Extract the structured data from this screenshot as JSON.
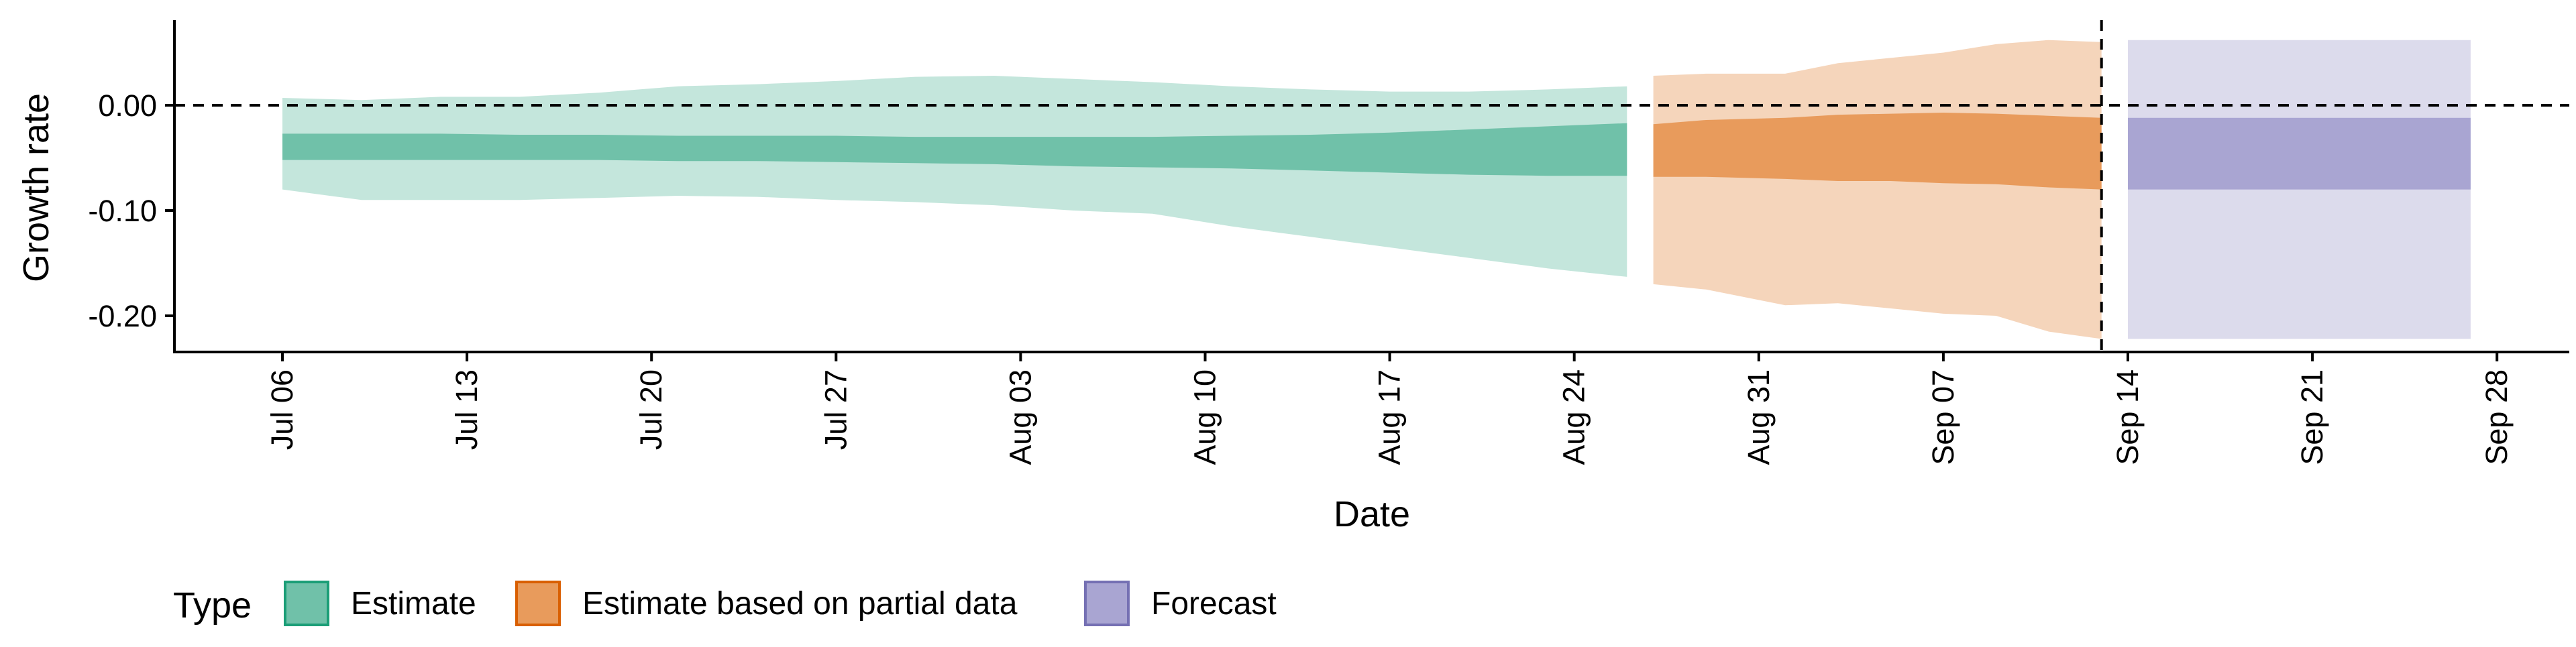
{
  "chart_data": {
    "type": "area",
    "title": "",
    "xlabel": "Date",
    "ylabel": "Growth rate",
    "x_range": [
      "2020-07-01",
      "2020-10-01"
    ],
    "ylim": [
      -0.236,
      0.08
    ],
    "y_ticks": [
      {
        "value": 0.0,
        "label": "0.00"
      },
      {
        "value": -0.1,
        "label": "-0.10"
      },
      {
        "value": -0.2,
        "label": "-0.20"
      }
    ],
    "x_ticks": [
      {
        "date": "2020-07-06",
        "label": "Jul 06"
      },
      {
        "date": "2020-07-13",
        "label": "Jul 13"
      },
      {
        "date": "2020-07-20",
        "label": "Jul 20"
      },
      {
        "date": "2020-07-27",
        "label": "Jul 27"
      },
      {
        "date": "2020-08-03",
        "label": "Aug 03"
      },
      {
        "date": "2020-08-10",
        "label": "Aug 10"
      },
      {
        "date": "2020-08-17",
        "label": "Aug 17"
      },
      {
        "date": "2020-08-24",
        "label": "Aug 24"
      },
      {
        "date": "2020-08-31",
        "label": "Aug 31"
      },
      {
        "date": "2020-09-07",
        "label": "Sep 07"
      },
      {
        "date": "2020-09-14",
        "label": "Sep 14"
      },
      {
        "date": "2020-09-21",
        "label": "Sep 21"
      },
      {
        "date": "2020-09-28",
        "label": "Sep 28"
      }
    ],
    "reference_lines": [
      {
        "orientation": "horizontal",
        "y": 0.0,
        "style": "dashed"
      },
      {
        "orientation": "vertical",
        "date": "2020-09-13",
        "style": "dashed"
      }
    ],
    "grid": false,
    "legend": {
      "title": "Type",
      "position": "bottom",
      "entries": [
        {
          "label": "Estimate",
          "color": "#1b9e77"
        },
        {
          "label": "Estimate based on partial data",
          "color": "#d95f02"
        },
        {
          "label": "Forecast",
          "color": "#7570b3"
        }
      ]
    },
    "series": [
      {
        "name": "Estimate",
        "color": "#1b9e77",
        "inner_fill": "#70c1a9",
        "outer_fill": "#c4e6dc",
        "points": [
          {
            "date": "2020-07-06",
            "lower_90": -0.08,
            "lower_50": -0.052,
            "upper_50": -0.027,
            "upper_90": 0.007
          },
          {
            "date": "2020-07-09",
            "lower_90": -0.09,
            "lower_50": -0.052,
            "upper_50": -0.027,
            "upper_90": 0.005
          },
          {
            "date": "2020-07-12",
            "lower_90": -0.09,
            "lower_50": -0.052,
            "upper_50": -0.027,
            "upper_90": 0.008
          },
          {
            "date": "2020-07-15",
            "lower_90": -0.09,
            "lower_50": -0.052,
            "upper_50": -0.028,
            "upper_90": 0.008
          },
          {
            "date": "2020-07-18",
            "lower_90": -0.088,
            "lower_50": -0.052,
            "upper_50": -0.028,
            "upper_90": 0.012
          },
          {
            "date": "2020-07-21",
            "lower_90": -0.086,
            "lower_50": -0.053,
            "upper_50": -0.029,
            "upper_90": 0.018
          },
          {
            "date": "2020-07-24",
            "lower_90": -0.087,
            "lower_50": -0.053,
            "upper_50": -0.029,
            "upper_90": 0.02
          },
          {
            "date": "2020-07-27",
            "lower_90": -0.09,
            "lower_50": -0.054,
            "upper_50": -0.029,
            "upper_90": 0.023
          },
          {
            "date": "2020-07-30",
            "lower_90": -0.092,
            "lower_50": -0.055,
            "upper_50": -0.03,
            "upper_90": 0.027
          },
          {
            "date": "2020-08-02",
            "lower_90": -0.095,
            "lower_50": -0.056,
            "upper_50": -0.03,
            "upper_90": 0.028
          },
          {
            "date": "2020-08-05",
            "lower_90": -0.1,
            "lower_50": -0.058,
            "upper_50": -0.03,
            "upper_90": 0.025
          },
          {
            "date": "2020-08-08",
            "lower_90": -0.103,
            "lower_50": -0.059,
            "upper_50": -0.03,
            "upper_90": 0.022
          },
          {
            "date": "2020-08-11",
            "lower_90": -0.115,
            "lower_50": -0.06,
            "upper_50": -0.029,
            "upper_90": 0.018
          },
          {
            "date": "2020-08-14",
            "lower_90": -0.125,
            "lower_50": -0.062,
            "upper_50": -0.028,
            "upper_90": 0.015
          },
          {
            "date": "2020-08-17",
            "lower_90": -0.135,
            "lower_50": -0.064,
            "upper_50": -0.026,
            "upper_90": 0.013
          },
          {
            "date": "2020-08-20",
            "lower_90": -0.145,
            "lower_50": -0.066,
            "upper_50": -0.023,
            "upper_90": 0.013
          },
          {
            "date": "2020-08-23",
            "lower_90": -0.155,
            "lower_50": -0.067,
            "upper_50": -0.02,
            "upper_90": 0.015
          },
          {
            "date": "2020-08-26",
            "lower_90": -0.163,
            "lower_50": -0.067,
            "upper_50": -0.017,
            "upper_90": 0.018
          }
        ]
      },
      {
        "name": "Estimate based on partial data",
        "color": "#d95f02",
        "inner_fill": "#e89b5c",
        "outer_fill": "#f5d5bb",
        "points": [
          {
            "date": "2020-08-27",
            "lower_90": -0.17,
            "lower_50": -0.068,
            "upper_50": -0.018,
            "upper_90": 0.028
          },
          {
            "date": "2020-08-29",
            "lower_90": -0.175,
            "lower_50": -0.068,
            "upper_50": -0.014,
            "upper_90": 0.03
          },
          {
            "date": "2020-09-01",
            "lower_90": -0.19,
            "lower_50": -0.07,
            "upper_50": -0.012,
            "upper_90": 0.03
          },
          {
            "date": "2020-09-03",
            "lower_90": -0.188,
            "lower_50": -0.072,
            "upper_50": -0.009,
            "upper_90": 0.04
          },
          {
            "date": "2020-09-05",
            "lower_90": -0.193,
            "lower_50": -0.072,
            "upper_50": -0.008,
            "upper_90": 0.045
          },
          {
            "date": "2020-09-07",
            "lower_90": -0.198,
            "lower_50": -0.074,
            "upper_50": -0.007,
            "upper_90": 0.05
          },
          {
            "date": "2020-09-09",
            "lower_90": -0.2,
            "lower_50": -0.075,
            "upper_50": -0.008,
            "upper_90": 0.058
          },
          {
            "date": "2020-09-11",
            "lower_90": -0.215,
            "lower_50": -0.078,
            "upper_50": -0.01,
            "upper_90": 0.062
          },
          {
            "date": "2020-09-13",
            "lower_90": -0.222,
            "lower_50": -0.08,
            "upper_50": -0.012,
            "upper_90": 0.06
          }
        ]
      },
      {
        "name": "Forecast",
        "color": "#7570b3",
        "inner_fill": "#a9a5d2",
        "outer_fill": "#dcdbec",
        "points": [
          {
            "date": "2020-09-14",
            "lower_90": -0.222,
            "lower_50": -0.08,
            "upper_50": -0.012,
            "upper_90": 0.062
          },
          {
            "date": "2020-09-27",
            "lower_90": -0.222,
            "lower_50": -0.08,
            "upper_50": -0.012,
            "upper_90": 0.062
          }
        ]
      }
    ]
  }
}
